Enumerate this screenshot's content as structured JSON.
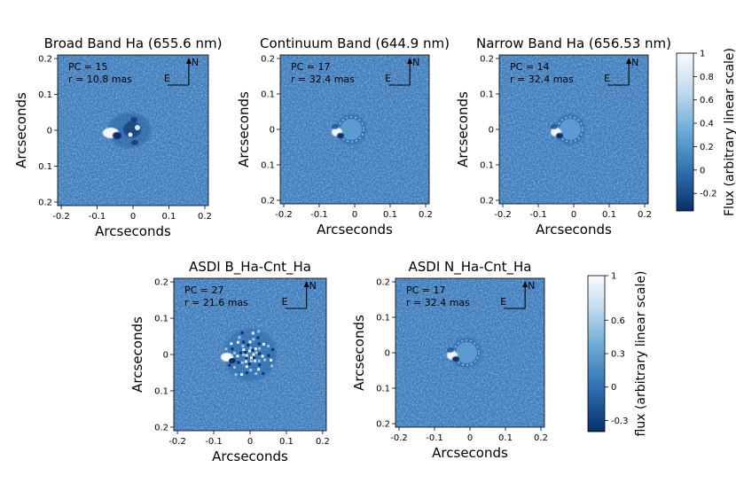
{
  "chart_data": [
    {
      "type": "heatmap",
      "title": "Broad Band Ha (655.6 nm)",
      "xlabel": "Arcseconds",
      "ylabel": "Arcseconds",
      "xlim": [
        -0.21,
        0.21
      ],
      "ylim": [
        -0.21,
        0.21
      ],
      "x_ticks": [
        "-0.2",
        "-0.1",
        "0",
        "0.1",
        "0.2"
      ],
      "y_ticks": [
        "0.2",
        "0.1",
        "0",
        "0.1",
        "0.2"
      ],
      "annotation": [
        "PC = 15",
        "r = 10.8 mas"
      ],
      "compass": {
        "north": "N",
        "east": "E"
      },
      "colorbar": "colorbar_1"
    },
    {
      "type": "heatmap",
      "title": "Continuum Band (644.9 nm)",
      "xlabel": "Arcseconds",
      "ylabel": "Arcseconds",
      "xlim": [
        -0.21,
        0.21
      ],
      "ylim": [
        -0.21,
        0.21
      ],
      "x_ticks": [
        "-0.2",
        "-0.1",
        "0",
        "0.1",
        "0.2"
      ],
      "y_ticks": [
        "0.2",
        "0.1",
        "0",
        "0.1",
        "0.2"
      ],
      "annotation": [
        "PC = 17",
        "r = 32.4 mas"
      ],
      "compass": {
        "north": "N",
        "east": "E"
      },
      "colorbar": "colorbar_1"
    },
    {
      "type": "heatmap",
      "title": "Narrow Band Ha (656.53 nm)",
      "xlabel": "Arcseconds",
      "ylabel": "Arcseconds",
      "xlim": [
        -0.21,
        0.21
      ],
      "ylim": [
        -0.21,
        0.21
      ],
      "x_ticks": [
        "-0.2",
        "-0.1",
        "0",
        "0.1",
        "0.2"
      ],
      "y_ticks": [
        "0.2",
        "0.1",
        "0",
        "0.1",
        "0.2"
      ],
      "annotation": [
        "PC = 14",
        "r = 32.4 mas"
      ],
      "compass": {
        "north": "N",
        "east": "E"
      },
      "colorbar": "colorbar_1"
    },
    {
      "type": "heatmap",
      "title": "ASDI B_Ha-Cnt_Ha",
      "xlabel": "Arcseconds",
      "ylabel": "Arcseconds",
      "xlim": [
        -0.21,
        0.21
      ],
      "ylim": [
        -0.21,
        0.21
      ],
      "x_ticks": [
        "-0.2",
        "-0.1",
        "0",
        "0.1",
        "0.2"
      ],
      "y_ticks": [
        "0.2",
        "0.1",
        "0",
        "0.1",
        "0.2"
      ],
      "annotation": [
        "PC = 27",
        "r = 21.6 mas"
      ],
      "compass": {
        "north": "N",
        "east": "E"
      },
      "colorbar": "colorbar_2"
    },
    {
      "type": "heatmap",
      "title": "ASDI N_Ha-Cnt_Ha",
      "xlabel": "Arcseconds",
      "ylabel": "Arcseconds",
      "xlim": [
        -0.21,
        0.21
      ],
      "ylim": [
        -0.21,
        0.21
      ],
      "x_ticks": [
        "-0.2",
        "-0.1",
        "0",
        "0.1",
        "0.2"
      ],
      "y_ticks": [
        "0.2",
        "0.1",
        "0",
        "0.1",
        "0.2"
      ],
      "annotation": [
        "PC = 17",
        "r = 32.4 mas"
      ],
      "compass": {
        "north": "N",
        "east": "E"
      },
      "colorbar": "colorbar_2"
    }
  ],
  "colorbars": {
    "colorbar_1": {
      "label": "Flux (arbitrary linear scale)",
      "range": [
        -0.35,
        1.0
      ],
      "ticks": [
        1,
        0.8,
        0.6,
        0.4,
        0.2,
        0,
        -0.2
      ],
      "tick_labels": [
        "1",
        "0.8",
        "0.6",
        "0.4",
        "0.2",
        "0",
        "-0.2"
      ]
    },
    "colorbar_2": {
      "label": "flux (arbitrary linear scale)",
      "range": [
        -0.4,
        1.0
      ],
      "ticks": [
        1,
        0.6,
        0.3,
        0,
        -0.3
      ],
      "tick_labels": [
        "1",
        "0.6",
        "0.3",
        "0",
        "-0.3"
      ]
    }
  },
  "colors": {
    "colormap_low": "#08306b",
    "colormap_mid": "#4a8cc8",
    "colormap_high": "#f7fbff",
    "background_field": "#3f7fbf"
  }
}
